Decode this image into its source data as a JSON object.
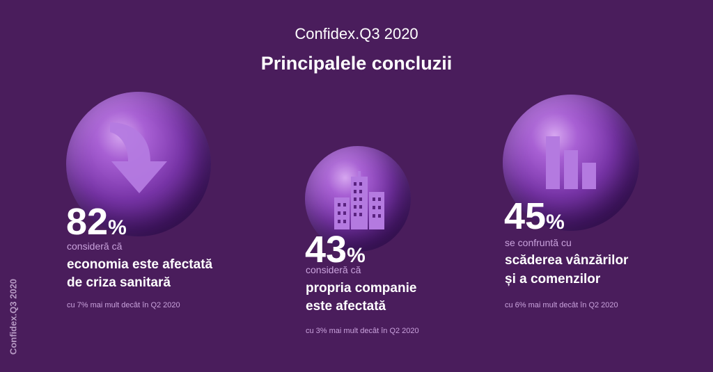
{
  "header": {
    "subtitle": "Confidex.Q3 2020",
    "title": "Principalele concluzii"
  },
  "side_label": "Confidex.Q3 2020",
  "cards": [
    {
      "icon": "arrow-down-icon",
      "value_num": "82",
      "value_pct": "%",
      "lead": "consideră că",
      "line1": "economia este afectată",
      "line2": "de criza sanitară",
      "note": "cu 7% mai mult decât în Q2 2020"
    },
    {
      "icon": "buildings-icon",
      "value_num": "43",
      "value_pct": "%",
      "lead": "consideră că",
      "line1": "propria companie",
      "line2": "este afectată",
      "note": "cu 3% mai mult decât în Q2 2020"
    },
    {
      "icon": "bar-chart-icon",
      "value_num": "45",
      "value_pct": "%",
      "lead": "se confruntă cu",
      "line1": "scăderea vânzărilor",
      "line2": "și a comenzilor",
      "note": "cu 6% mai mult decât în Q2 2020"
    }
  ],
  "colors": {
    "background": "#4a1d5c",
    "accent_light": "#c9a2dc",
    "icon": "#b47ae0"
  }
}
